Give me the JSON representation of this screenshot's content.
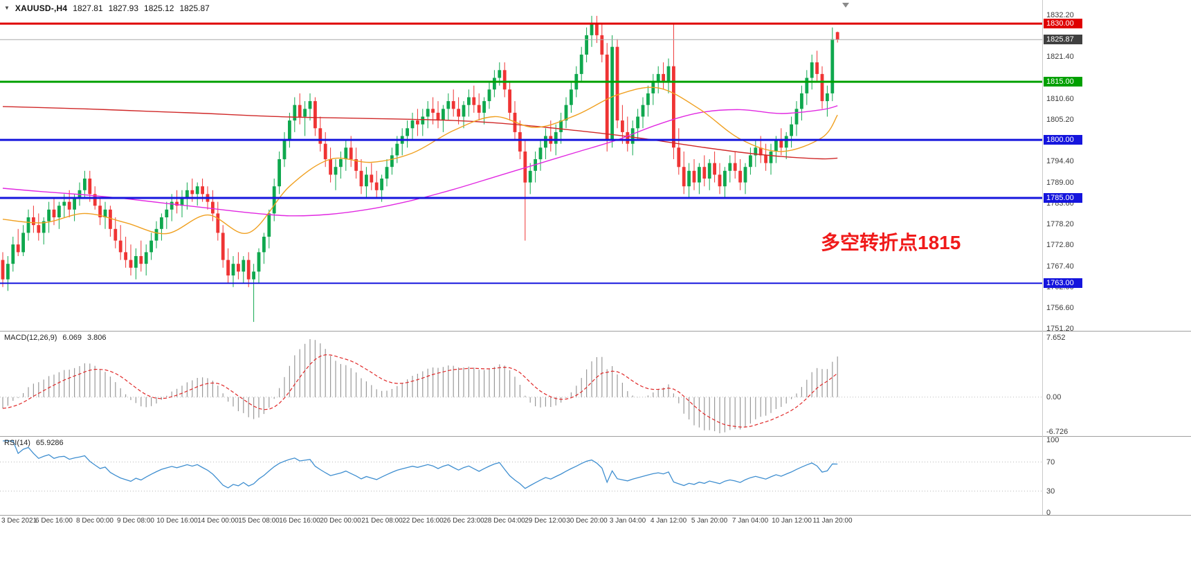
{
  "header": {
    "symbol": "XAUUSD-,H4",
    "open": "1827.81",
    "high": "1827.93",
    "low": "1825.12",
    "close": "1825.87"
  },
  "annotation": {
    "text": "多空转折点1815",
    "color": "#f01a1a"
  },
  "macd": {
    "label": "MACD(12,26,9)",
    "main_value": "6.069",
    "signal_value": "3.806",
    "axis_top": "7.652",
    "axis_zero": "0.00",
    "axis_bottom": "-6.726"
  },
  "rsi": {
    "label": "RSI(14)",
    "value": "65.9286",
    "axis": [
      "100",
      "70",
      "30",
      "0"
    ],
    "axis_levels": [
      100,
      70,
      30,
      0
    ],
    "levels": [
      70,
      30
    ]
  },
  "price_axis": {
    "ticks": [
      1832.2,
      1821.4,
      1810.6,
      1805.2,
      1794.4,
      1789.0,
      1783.6,
      1778.2,
      1772.8,
      1767.4,
      1762.0,
      1756.6,
      1751.2
    ],
    "badges": [
      {
        "value": 1830.0,
        "color": "#df0000"
      },
      {
        "value": 1825.87,
        "color": "#404040"
      },
      {
        "value": 1815.0,
        "color": "#00a000"
      },
      {
        "value": 1800.0,
        "color": "#1515dd"
      },
      {
        "value": 1785.0,
        "color": "#1515dd"
      },
      {
        "value": 1763.0,
        "color": "#1515dd"
      }
    ]
  },
  "time_axis": [
    "3 Dec 2021",
    "6 Dec 16:00",
    "8 Dec 00:00",
    "9 Dec 08:00",
    "10 Dec 16:00",
    "14 Dec 00:00",
    "15 Dec 08:00",
    "16 Dec 16:00",
    "20 Dec 00:00",
    "21 Dec 08:00",
    "22 Dec 16:00",
    "26 Dec 23:00",
    "28 Dec 04:00",
    "29 Dec 12:00",
    "30 Dec 20:00",
    "3 Jan 04:00",
    "4 Jan 12:00",
    "5 Jan 20:00",
    "7 Jan 04:00",
    "10 Jan 12:00",
    "11 Jan 20:00"
  ],
  "chart_data": {
    "type": "candlestick",
    "symbol": "XAUUSD-",
    "timeframe": "H4",
    "title": "XAUUSD- H4 with MACD(12,26,9), RSI(14), MA overlays and horizontal levels",
    "price_ylim": [
      1750.7,
      1836.1
    ],
    "colors": {
      "up": "#0fa84e",
      "down": "#ef3434",
      "ma_red": "#d02828",
      "ma_magenta": "#e128e1",
      "ma_orange": "#f0a020",
      "macd_hist": "#999999",
      "macd_signal": "#e02828",
      "rsi_line": "#3e8ed0",
      "current_price_line": "#aaaaaa"
    },
    "hlines": [
      {
        "price": 1830.0,
        "color": "#df0000",
        "width": 3
      },
      {
        "price": 1815.0,
        "color": "#00a000",
        "width": 3
      },
      {
        "price": 1800.0,
        "color": "#1515dd",
        "width": 3
      },
      {
        "price": 1785.0,
        "color": "#1515dd",
        "width": 3
      },
      {
        "price": 1763.0,
        "color": "#1515dd",
        "width": 2
      }
    ],
    "current_price": 1825.87,
    "time_first_bar": 2,
    "time_step": 8,
    "candles": [
      [
        1769,
        1771,
        1762,
        1764
      ],
      [
        1764,
        1770,
        1761,
        1768
      ],
      [
        1768,
        1775,
        1766,
        1773
      ],
      [
        1773,
        1777,
        1770,
        1771
      ],
      [
        1771,
        1778,
        1770,
        1776
      ],
      [
        1776,
        1782,
        1774,
        1780
      ],
      [
        1780,
        1783,
        1776,
        1778
      ],
      [
        1778,
        1781,
        1774,
        1776
      ],
      [
        1776,
        1780,
        1773,
        1779
      ],
      [
        1779,
        1784,
        1776,
        1782
      ],
      [
        1782,
        1785,
        1778,
        1780
      ],
      [
        1780,
        1784,
        1777,
        1783
      ],
      [
        1783,
        1786,
        1780,
        1784
      ],
      [
        1784,
        1787,
        1780,
        1782
      ],
      [
        1782,
        1786,
        1779,
        1785
      ],
      [
        1785,
        1789,
        1783,
        1787
      ],
      [
        1787,
        1792,
        1785,
        1790
      ],
      [
        1790,
        1792,
        1784,
        1786
      ],
      [
        1786,
        1788,
        1782,
        1783
      ],
      [
        1783,
        1785,
        1778,
        1780
      ],
      [
        1780,
        1784,
        1777,
        1782
      ],
      [
        1782,
        1783,
        1775,
        1777
      ],
      [
        1777,
        1780,
        1772,
        1774
      ],
      [
        1774,
        1778,
        1769,
        1771
      ],
      [
        1771,
        1775,
        1767,
        1769
      ],
      [
        1769,
        1773,
        1765,
        1767
      ],
      [
        1767,
        1772,
        1764,
        1770
      ],
      [
        1770,
        1774,
        1766,
        1768
      ],
      [
        1768,
        1773,
        1765,
        1771
      ],
      [
        1771,
        1776,
        1769,
        1774
      ],
      [
        1774,
        1779,
        1772,
        1777
      ],
      [
        1777,
        1781,
        1774,
        1780
      ],
      [
        1780,
        1784,
        1777,
        1782
      ],
      [
        1782,
        1786,
        1779,
        1784
      ],
      [
        1784,
        1787,
        1781,
        1783
      ],
      [
        1783,
        1787,
        1780,
        1785
      ],
      [
        1785,
        1789,
        1782,
        1787
      ],
      [
        1787,
        1790,
        1784,
        1786
      ],
      [
        1786,
        1789,
        1783,
        1788
      ],
      [
        1788,
        1790,
        1784,
        1786
      ],
      [
        1786,
        1788,
        1782,
        1784
      ],
      [
        1784,
        1787,
        1779,
        1781
      ],
      [
        1781,
        1784,
        1774,
        1776
      ],
      [
        1776,
        1778,
        1767,
        1769
      ],
      [
        1769,
        1772,
        1763,
        1765
      ],
      [
        1765,
        1770,
        1762,
        1768
      ],
      [
        1768,
        1771,
        1764,
        1766
      ],
      [
        1766,
        1770,
        1763,
        1769
      ],
      [
        1769,
        1771,
        1762,
        1764
      ],
      [
        1764,
        1768,
        1753,
        1766
      ],
      [
        1766,
        1772,
        1763,
        1771
      ],
      [
        1771,
        1776,
        1768,
        1775
      ],
      [
        1775,
        1782,
        1772,
        1781
      ],
      [
        1781,
        1790,
        1779,
        1788
      ],
      [
        1788,
        1797,
        1786,
        1795
      ],
      [
        1795,
        1802,
        1793,
        1800
      ],
      [
        1800,
        1807,
        1798,
        1805
      ],
      [
        1805,
        1811,
        1802,
        1809
      ],
      [
        1809,
        1812,
        1804,
        1806
      ],
      [
        1806,
        1810,
        1801,
        1808
      ],
      [
        1808,
        1812,
        1805,
        1810
      ],
      [
        1810,
        1811,
        1801,
        1803
      ],
      [
        1803,
        1806,
        1797,
        1799
      ],
      [
        1799,
        1802,
        1793,
        1795
      ],
      [
        1795,
        1798,
        1789,
        1791
      ],
      [
        1791,
        1795,
        1787,
        1793
      ],
      [
        1793,
        1797,
        1790,
        1795
      ],
      [
        1795,
        1800,
        1792,
        1798
      ],
      [
        1798,
        1801,
        1793,
        1795
      ],
      [
        1795,
        1798,
        1790,
        1792
      ],
      [
        1792,
        1795,
        1786,
        1788
      ],
      [
        1788,
        1793,
        1785,
        1791
      ],
      [
        1791,
        1794,
        1787,
        1789
      ],
      [
        1789,
        1792,
        1785,
        1787
      ],
      [
        1787,
        1791,
        1784,
        1790
      ],
      [
        1790,
        1795,
        1788,
        1793
      ],
      [
        1793,
        1798,
        1791,
        1796
      ],
      [
        1796,
        1801,
        1794,
        1799
      ],
      [
        1799,
        1803,
        1796,
        1801
      ],
      [
        1801,
        1805,
        1798,
        1803
      ],
      [
        1803,
        1807,
        1800,
        1805
      ],
      [
        1805,
        1808,
        1801,
        1804
      ],
      [
        1804,
        1808,
        1801,
        1806
      ],
      [
        1806,
        1810,
        1803,
        1808
      ],
      [
        1808,
        1811,
        1804,
        1807
      ],
      [
        1807,
        1810,
        1803,
        1805
      ],
      [
        1805,
        1809,
        1802,
        1808
      ],
      [
        1808,
        1812,
        1805,
        1810
      ],
      [
        1810,
        1813,
        1806,
        1808
      ],
      [
        1808,
        1811,
        1804,
        1806
      ],
      [
        1806,
        1810,
        1803,
        1809
      ],
      [
        1809,
        1813,
        1806,
        1811
      ],
      [
        1811,
        1814,
        1807,
        1809
      ],
      [
        1809,
        1812,
        1805,
        1807
      ],
      [
        1807,
        1811,
        1804,
        1810
      ],
      [
        1810,
        1815,
        1808,
        1813
      ],
      [
        1813,
        1818,
        1811,
        1816
      ],
      [
        1816,
        1820,
        1814,
        1818
      ],
      [
        1818,
        1820,
        1811,
        1813
      ],
      [
        1813,
        1815,
        1805,
        1807
      ],
      [
        1807,
        1810,
        1800,
        1802
      ],
      [
        1802,
        1805,
        1795,
        1797
      ],
      [
        1797,
        1800,
        1774,
        1789
      ],
      [
        1789,
        1794,
        1786,
        1792
      ],
      [
        1792,
        1797,
        1789,
        1795
      ],
      [
        1795,
        1800,
        1792,
        1798
      ],
      [
        1798,
        1803,
        1795,
        1801
      ],
      [
        1801,
        1805,
        1797,
        1799
      ],
      [
        1799,
        1804,
        1796,
        1802
      ],
      [
        1802,
        1807,
        1799,
        1805
      ],
      [
        1805,
        1811,
        1803,
        1809
      ],
      [
        1809,
        1815,
        1807,
        1813
      ],
      [
        1813,
        1819,
        1811,
        1817
      ],
      [
        1817,
        1824,
        1815,
        1822
      ],
      [
        1822,
        1829,
        1820,
        1827
      ],
      [
        1827,
        1832,
        1824,
        1830
      ],
      [
        1830,
        1832,
        1825,
        1827
      ],
      [
        1827,
        1830,
        1820,
        1822
      ],
      [
        1822,
        1825,
        1797,
        1800
      ],
      [
        1800,
        1827,
        1798,
        1824
      ],
      [
        1824,
        1826,
        1803,
        1805
      ],
      [
        1805,
        1809,
        1799,
        1802
      ],
      [
        1802,
        1806,
        1797,
        1799
      ],
      [
        1799,
        1805,
        1796,
        1803
      ],
      [
        1803,
        1808,
        1800,
        1806
      ],
      [
        1806,
        1811,
        1803,
        1809
      ],
      [
        1809,
        1814,
        1806,
        1812
      ],
      [
        1812,
        1817,
        1809,
        1815
      ],
      [
        1815,
        1819,
        1812,
        1817
      ],
      [
        1817,
        1820,
        1813,
        1815
      ],
      [
        1815,
        1821,
        1812,
        1819
      ],
      [
        1819,
        1830,
        1795,
        1798
      ],
      [
        1798,
        1803,
        1791,
        1793
      ],
      [
        1793,
        1797,
        1786,
        1788
      ],
      [
        1788,
        1794,
        1785,
        1792
      ],
      [
        1792,
        1795,
        1787,
        1789
      ],
      [
        1789,
        1794,
        1786,
        1793
      ],
      [
        1793,
        1796,
        1788,
        1790
      ],
      [
        1790,
        1795,
        1787,
        1794
      ],
      [
        1794,
        1797,
        1789,
        1791
      ],
      [
        1791,
        1794,
        1786,
        1788
      ],
      [
        1788,
        1793,
        1785,
        1792
      ],
      [
        1792,
        1796,
        1789,
        1794
      ],
      [
        1794,
        1797,
        1790,
        1792
      ],
      [
        1792,
        1795,
        1787,
        1789
      ],
      [
        1789,
        1794,
        1786,
        1793
      ],
      [
        1793,
        1798,
        1791,
        1796
      ],
      [
        1796,
        1800,
        1793,
        1798
      ],
      [
        1798,
        1801,
        1794,
        1796
      ],
      [
        1796,
        1799,
        1792,
        1794
      ],
      [
        1794,
        1799,
        1791,
        1797
      ],
      [
        1797,
        1801,
        1794,
        1800
      ],
      [
        1800,
        1803,
        1796,
        1798
      ],
      [
        1798,
        1802,
        1795,
        1801
      ],
      [
        1801,
        1806,
        1798,
        1804
      ],
      [
        1804,
        1810,
        1801,
        1808
      ],
      [
        1808,
        1814,
        1805,
        1812
      ],
      [
        1812,
        1818,
        1809,
        1816
      ],
      [
        1816,
        1822,
        1813,
        1820
      ],
      [
        1820,
        1823,
        1815,
        1817
      ],
      [
        1817,
        1819,
        1808,
        1810
      ],
      [
        1810,
        1814,
        1806,
        1812
      ],
      [
        1812,
        1829,
        1810,
        1826
      ],
      [
        1827.81,
        1827.93,
        1825.12,
        1825.87
      ]
    ],
    "ma_idx": [
      0,
      8,
      16,
      24,
      32,
      40,
      48,
      56,
      64,
      72,
      80,
      88,
      96,
      104,
      112,
      120,
      128,
      136,
      144,
      152,
      160,
      163
    ],
    "ma_red": [
      1808.6,
      1808.3,
      1808.0,
      1807.6,
      1807.2,
      1806.8,
      1806.3,
      1805.9,
      1805.7,
      1805.5,
      1805.3,
      1805.0,
      1804.4,
      1803.5,
      1802.4,
      1801.2,
      1799.8,
      1798.2,
      1796.8,
      1795.7,
      1795.1,
      1795.3
    ],
    "ma_magenta": [
      1787.5,
      1786.6,
      1785.8,
      1784.8,
      1783.6,
      1782.4,
      1781.2,
      1780.4,
      1780.8,
      1782.2,
      1784.4,
      1787.2,
      1790.4,
      1793.6,
      1796.8,
      1800.0,
      1804.0,
      1807.0,
      1807.8,
      1806.8,
      1807.8,
      1808.8
    ],
    "ma_orange": [
      1779.5,
      1778.6,
      1781.0,
      1778.6,
      1775.8,
      1780.6,
      1776.0,
      1788.0,
      1795.0,
      1794.2,
      1796.6,
      1802.4,
      1806.0,
      1803.2,
      1806.4,
      1811.6,
      1813.4,
      1808.0,
      1800.2,
      1797.0,
      1800.6,
      1806.4
    ],
    "macd_axis": {
      "top": 7.652,
      "zero": 0.0,
      "bottom": -6.726
    },
    "rsi_last": 65.9286
  }
}
